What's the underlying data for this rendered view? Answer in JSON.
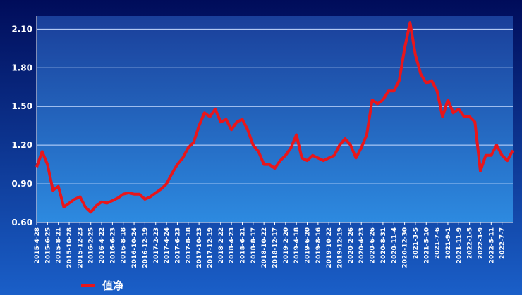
{
  "chart_data": {
    "type": "line",
    "categories": [
      "2015-4-28",
      null,
      "2015-6-25",
      null,
      "2015-8-21",
      null,
      "2015-10-28",
      null,
      "2015-12-23",
      null,
      "2016-2-25",
      null,
      "2016-4-22",
      null,
      "2016-6-23",
      null,
      "2016-8-18",
      null,
      "2016-10-24",
      null,
      "2016-12-19",
      null,
      "2017-2-23",
      null,
      "2017-4-24",
      null,
      "2017-6-23",
      null,
      "2017-8-18",
      null,
      "2017-10-23",
      null,
      "2017-12-19",
      null,
      "2018-2-22",
      null,
      "2018-4-23",
      null,
      "2018-6-21",
      null,
      "2018-8-17",
      null,
      "2018-10-22",
      null,
      "2018-12-17",
      null,
      "2019-2-20",
      null,
      "2019-4-18",
      null,
      "2019-6-20",
      null,
      "2019-8-16",
      null,
      "2019-10-22",
      null,
      "2019-12-19",
      null,
      "2020-2-26",
      null,
      "2020-4-23",
      null,
      "2020-6-26",
      null,
      "2020-8-31",
      null,
      "2020-11-4",
      null,
      "2020-12-30",
      null,
      "2021-3-5",
      null,
      "2021-5-10",
      null,
      "2021-7-6",
      null,
      "2021-9-1",
      null,
      "2021-11-9",
      null,
      "2022-1-5",
      null,
      "2022-3-9",
      null,
      "2022-5-11",
      null,
      "2022-7-7",
      null,
      null
    ],
    "series": [
      {
        "name": "值净",
        "color": "#e8161b",
        "values": [
          1.03,
          1.15,
          1.05,
          0.85,
          0.88,
          0.72,
          0.75,
          0.78,
          0.8,
          0.72,
          0.68,
          0.73,
          0.76,
          0.75,
          0.77,
          0.79,
          0.82,
          0.83,
          0.82,
          0.82,
          0.78,
          0.8,
          0.83,
          0.86,
          0.9,
          0.98,
          1.05,
          1.1,
          1.18,
          1.22,
          1.35,
          1.45,
          1.42,
          1.48,
          1.38,
          1.4,
          1.32,
          1.38,
          1.4,
          1.32,
          1.2,
          1.15,
          1.05,
          1.05,
          1.02,
          1.08,
          1.12,
          1.18,
          1.28,
          1.1,
          1.08,
          1.12,
          1.1,
          1.08,
          1.1,
          1.12,
          1.2,
          1.25,
          1.2,
          1.1,
          1.18,
          1.28,
          1.55,
          1.52,
          1.55,
          1.62,
          1.62,
          1.7,
          1.95,
          2.15,
          1.9,
          1.75,
          1.68,
          1.7,
          1.62,
          1.42,
          1.55,
          1.45,
          1.48,
          1.42,
          1.42,
          1.38,
          1.0,
          1.12,
          1.12,
          1.2,
          1.12,
          1.08,
          1.16
        ]
      }
    ],
    "ylim": [
      0.6,
      2.2
    ],
    "yticks": [
      {
        "value": 0.6,
        "label": "0.60"
      },
      {
        "value": 0.9,
        "label": "0.90"
      },
      {
        "value": 1.2,
        "label": "1.20"
      },
      {
        "value": 1.5,
        "label": "1.50"
      },
      {
        "value": 1.8,
        "label": "1.80"
      },
      {
        "value": 2.1,
        "label": "2.10"
      }
    ],
    "grid": true
  }
}
